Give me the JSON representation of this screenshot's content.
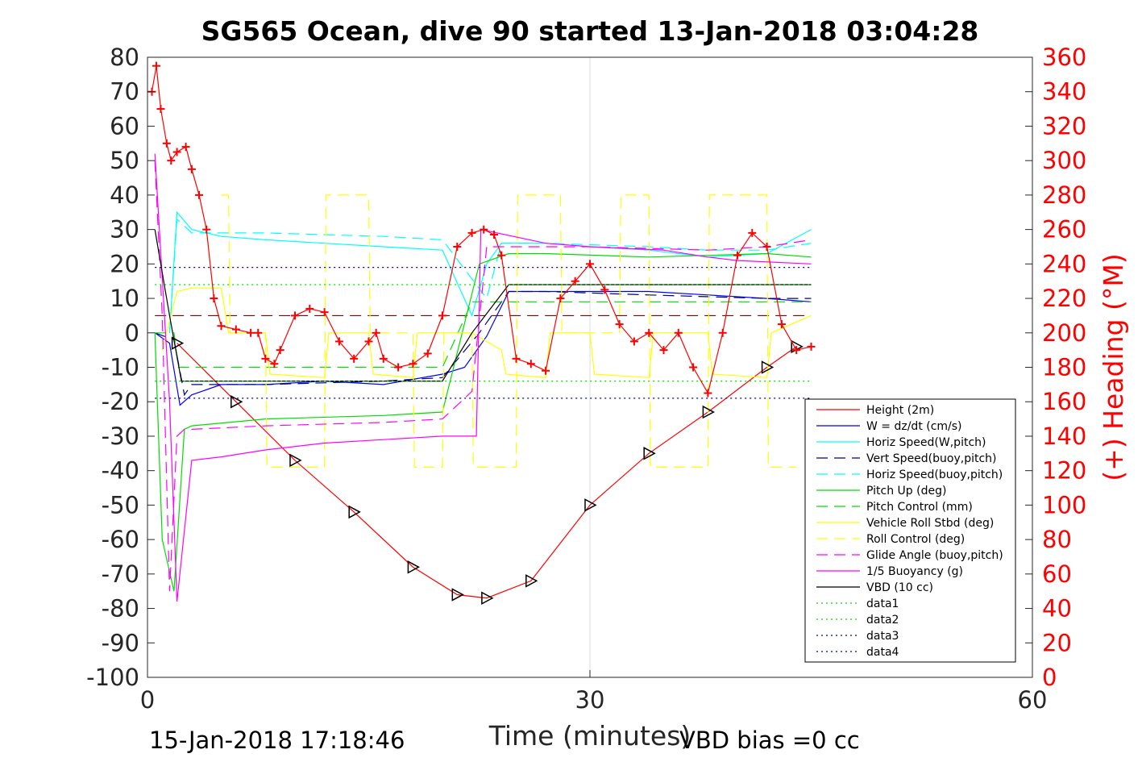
{
  "chart_data": {
    "type": "line",
    "title": "SG565 Ocean, dive 90 started 13-Jan-2018 03:04:28",
    "xlabel": "Time (minutes)",
    "ylabel": "",
    "ylabel_right": "(+) Heading (°M)",
    "xlim": [
      0,
      60
    ],
    "ylim": [
      -100,
      80
    ],
    "ylim_right": [
      0,
      360
    ],
    "xticks": [
      "0",
      "30",
      "60"
    ],
    "yticks": [
      "80",
      "70",
      "60",
      "50",
      "40",
      "30",
      "20",
      "10",
      "0",
      "-10",
      "-20",
      "-30",
      "-40",
      "-50",
      "-60",
      "-70",
      "-80",
      "-90",
      "-100"
    ],
    "yticks_right": [
      "360",
      "340",
      "320",
      "300",
      "280",
      "260",
      "240",
      "220",
      "200",
      "180",
      "160",
      "140",
      "120",
      "100",
      "80",
      "60",
      "40",
      "20",
      "0"
    ],
    "grid": "x-only",
    "legend_position": "lower-right",
    "footer_left": "15-Jan-2018 17:18:46",
    "footer_right": "VBD bias =0 cc",
    "colors": {
      "red": "#ff0000",
      "blue": "#0000ff",
      "cyan": "#00ffff",
      "navy": "#00008b",
      "green": "#00dd00",
      "yellow": "#ffff00",
      "magenta": "#ff00ff",
      "black": "#000000"
    },
    "series": [
      {
        "name": "Height (2m)",
        "color": "#ff0000",
        "style": "solid",
        "marker": "triangle",
        "x": [
          2,
          6,
          10,
          14,
          18,
          21,
          23,
          26,
          30,
          34,
          38,
          42,
          44
        ],
        "y": [
          -3,
          -20,
          -37,
          -52,
          -68,
          -76,
          -77,
          -72,
          -50,
          -35,
          -23,
          -10,
          -4
        ]
      },
      {
        "name": "W = dz/dt (cm/s)",
        "color": "#0000ff",
        "style": "solid",
        "x": [
          0.5,
          1.5,
          2.2,
          3,
          5,
          8,
          12,
          16,
          20,
          21.5,
          23,
          24.5,
          27,
          30,
          34,
          38,
          42,
          45
        ],
        "y": [
          0,
          -3,
          -21,
          -18,
          -15,
          -15,
          -14,
          -15,
          -12,
          -10,
          -1,
          12,
          12,
          12,
          12,
          11,
          10,
          9
        ]
      },
      {
        "name": "Horiz Speed(W,pitch)",
        "color": "#00ffff",
        "style": "solid",
        "x": [
          1.5,
          2,
          3,
          5,
          8,
          12,
          16,
          20,
          22,
          23,
          24,
          27,
          30,
          34,
          38,
          42,
          45
        ],
        "y": [
          0,
          35,
          30,
          28,
          27,
          26,
          25,
          24,
          5,
          20,
          26,
          26,
          25,
          24,
          22,
          23,
          30
        ]
      },
      {
        "name": "Vert Speed(buoy,pitch)",
        "color": "#00008b",
        "style": "dashed",
        "x": [
          0.5,
          1.8,
          2.5,
          3,
          8,
          16,
          20,
          22.5,
          24.5,
          27,
          34,
          42,
          45
        ],
        "y": [
          0,
          -2,
          -18,
          -15,
          -15,
          -14,
          -13,
          0,
          12,
          12,
          11,
          10,
          10
        ]
      },
      {
        "name": "Horiz Speed(buoy,pitch)",
        "color": "#00ffff",
        "style": "dashed",
        "x": [
          1.5,
          2,
          3,
          8,
          16,
          20,
          23,
          24,
          27,
          34,
          38,
          42,
          45
        ],
        "y": [
          0,
          33,
          29,
          29,
          28,
          27,
          10,
          26,
          26,
          25,
          24,
          24,
          26
        ]
      },
      {
        "name": "Pitch Up (deg)",
        "color": "#00dd00",
        "style": "solid",
        "x": [
          0.5,
          1,
          1.8,
          2.5,
          3,
          8,
          16,
          20,
          22.5,
          24.5,
          27,
          34,
          42,
          45
        ],
        "y": [
          0,
          -60,
          -75,
          -28,
          -27,
          -25,
          -24,
          -23,
          20,
          23,
          23,
          22,
          23,
          22
        ]
      },
      {
        "name": "Pitch Control (mm)",
        "color": "#00dd00",
        "style": "dashed",
        "x": [
          0.5,
          1.8,
          2.1,
          20,
          22,
          45
        ],
        "y": [
          0,
          0,
          -10,
          -10,
          9,
          9
        ]
      },
      {
        "name": "Vehicle Roll Stbd (deg)",
        "color": "#ffff00",
        "style": "solid",
        "x": [
          1,
          2,
          3,
          5,
          5.5,
          8,
          8.3,
          12,
          12.3,
          15,
          15.3,
          18,
          18.3,
          22,
          24,
          24.3,
          27,
          27.3,
          30,
          30.3,
          34,
          34.3,
          38,
          38.3,
          42,
          42.3,
          45
        ],
        "y": [
          -5,
          12,
          13,
          13,
          0,
          0,
          -12,
          -13,
          0,
          0,
          -12,
          -13,
          0,
          0,
          -5,
          -12,
          -13,
          0,
          0,
          -12,
          -13,
          0,
          0,
          -12,
          -13,
          0,
          5
        ]
      },
      {
        "name": "Roll Control (deg)",
        "color": "#ffff00",
        "style": "dashed",
        "x": [
          5,
          5.5,
          5.6,
          8,
          8.1,
          12,
          12.1,
          15,
          15.1,
          18,
          18.1,
          20,
          20.1,
          22,
          22.1,
          25,
          25.1,
          28,
          28.1,
          32,
          32.1,
          34,
          34.1,
          38,
          38.1,
          42,
          42.1,
          44
        ],
        "y": [
          40,
          40,
          0,
          0,
          -39,
          -39,
          40,
          40,
          0,
          0,
          -39,
          -39,
          0,
          0,
          -39,
          -39,
          40,
          40,
          0,
          0,
          40,
          40,
          -39,
          -39,
          40,
          40,
          -39,
          -39
        ]
      },
      {
        "name": "Glide Angle (buoy,pitch)",
        "color": "#ff00ff",
        "style": "dashed",
        "x": [
          0.5,
          1,
          1.5,
          2,
          2.5,
          3,
          8,
          16,
          20,
          22,
          23,
          24,
          30,
          38,
          42,
          45
        ],
        "y": [
          50,
          5,
          -75,
          -30,
          -28,
          -28,
          -27,
          -26,
          -25,
          -17,
          25,
          25,
          25,
          24,
          25,
          27
        ]
      },
      {
        "name": "1/5 Buoyancy (g)",
        "color": "#ff00ff",
        "style": "solid",
        "x": [
          0.5,
          1.5,
          2,
          3,
          5,
          8,
          12,
          16,
          20,
          22.3,
          22.6,
          27,
          30,
          35,
          38,
          40,
          45
        ],
        "y": [
          52,
          -20,
          -78,
          -37,
          -36,
          -34,
          -32,
          -31,
          -30,
          -30,
          30,
          26,
          25,
          24,
          22,
          21,
          20
        ]
      },
      {
        "name": "VBD (10 cc)",
        "color": "#000000",
        "style": "solid",
        "x": [
          0.5,
          1.5,
          2.3,
          3,
          20,
          22,
          24.5,
          45
        ],
        "y": [
          30,
          5,
          -14,
          -14,
          -14,
          0,
          14,
          14
        ]
      },
      {
        "name": "data1",
        "color": "#00dd00",
        "style": "dotted",
        "x": [
          0.5,
          45
        ],
        "y": [
          -14,
          -14
        ]
      },
      {
        "name": "data2",
        "color": "#00dd00",
        "style": "dotted",
        "x": [
          0.5,
          45
        ],
        "y": [
          14,
          14
        ]
      },
      {
        "name": "data3",
        "color": "#00008b",
        "style": "dotted",
        "x": [
          0.5,
          45
        ],
        "y": [
          -19,
          -19
        ]
      },
      {
        "name": "data4",
        "color": "#00008b",
        "style": "dotted",
        "x": [
          0.5,
          45
        ],
        "y": [
          19,
          19
        ]
      }
    ],
    "reference_lines": [
      {
        "color": "#8b0000",
        "style": "dashed",
        "y": 5,
        "xlim": [
          0.5,
          45
        ]
      }
    ],
    "heading_series": {
      "name": "Heading",
      "axis": "right",
      "color": "#ff0000",
      "marker": "plus",
      "x": [
        0.3,
        0.6,
        0.9,
        1.3,
        1.6,
        2,
        2.6,
        3,
        3.5,
        4,
        4.5,
        5,
        6,
        7,
        7.5,
        8,
        8.6,
        9,
        10,
        11,
        12,
        13,
        14,
        15,
        15.5,
        16,
        17,
        18,
        19,
        20,
        21,
        22,
        22.8,
        23.5,
        24,
        25,
        26,
        27,
        28,
        29,
        30,
        31,
        32,
        33,
        34,
        35,
        36,
        37,
        38,
        39,
        40,
        41,
        42,
        43,
        44,
        45
      ],
      "y": [
        340,
        355,
        330,
        310,
        300,
        305,
        308,
        295,
        280,
        260,
        220,
        204,
        202,
        200,
        200,
        185,
        182,
        190,
        210,
        214,
        212,
        195,
        185,
        195,
        200,
        185,
        180,
        182,
        188,
        210,
        250,
        258,
        260,
        257,
        245,
        185,
        182,
        178,
        220,
        230,
        240,
        225,
        205,
        195,
        200,
        190,
        200,
        180,
        165,
        200,
        245,
        258,
        250,
        205,
        190,
        192
      ]
    }
  }
}
